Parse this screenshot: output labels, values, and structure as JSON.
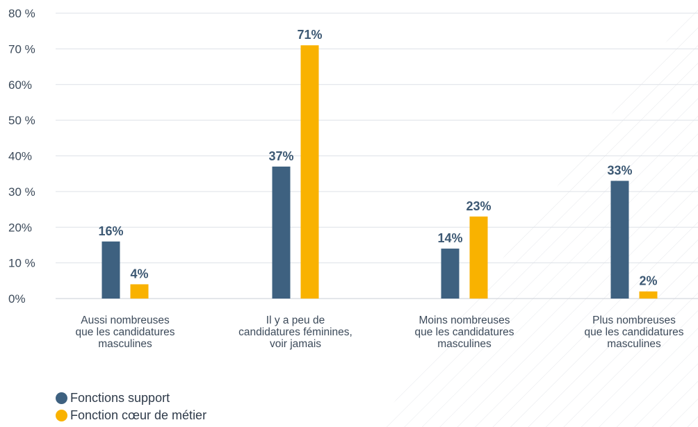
{
  "chart_data": {
    "type": "bar",
    "title": "",
    "xlabel": "",
    "ylabel": "",
    "ylim": [
      0,
      80
    ],
    "yticks": [
      {
        "value": 0,
        "label": "0%"
      },
      {
        "value": 10,
        "label": "10 %"
      },
      {
        "value": 20,
        "label": "20%"
      },
      {
        "value": 30,
        "label": "30 %"
      },
      {
        "value": 40,
        "label": "40%"
      },
      {
        "value": 50,
        "label": "50 %"
      },
      {
        "value": 60,
        "label": "60%"
      },
      {
        "value": 70,
        "label": "70 %"
      },
      {
        "value": 80,
        "label": "80 %"
      }
    ],
    "categories": [
      "Aussi nombreuses\nque les candidatures\nmasculines",
      "Il y a peu de\ncandidatures féminines,\nvoir jamais",
      "Moins nombreuses\nque les candidatures\nmasculines",
      "Plus nombreuses\nque les candidatures\nmasculines"
    ],
    "series": [
      {
        "name": "Fonctions support",
        "color": "#3e6180",
        "values": [
          16,
          37,
          14,
          33
        ],
        "labels": [
          "16%",
          "37%",
          "14%",
          "33%"
        ]
      },
      {
        "name": "Fonction cœur de métier",
        "color": "#f9b200",
        "values": [
          4,
          71,
          23,
          2
        ],
        "labels": [
          "4%",
          "71%",
          "23%",
          "2%"
        ]
      }
    ],
    "grid": true,
    "legend_position": "bottom-left"
  }
}
